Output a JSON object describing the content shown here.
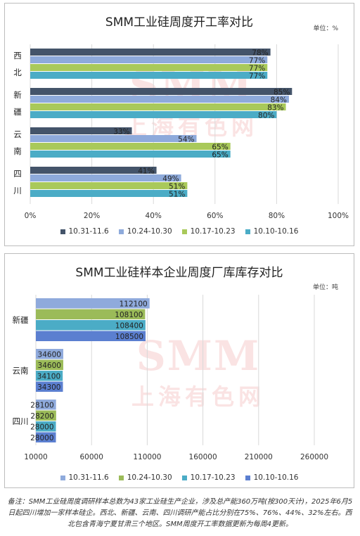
{
  "colors": {
    "s1": "#44546a",
    "s2": "#8eaadb",
    "s3": "#a9c95a",
    "s4": "#4bacc6",
    "s2_inv": "#8faadc",
    "s3_inv": "#9bbb59",
    "s4_inv": "#4bacc6",
    "s5_inv": "#5b7fd0",
    "grid": "#d9d9d9"
  },
  "watermark": {
    "brand": "SMM",
    "cn": "上海有色网"
  },
  "chart1": {
    "title": "SMM工业硅周度开工率对比",
    "unit": "单位：%",
    "chart_data": {
      "type": "bar",
      "orientation": "horizontal",
      "categories": [
        "西北",
        "新疆",
        "云南",
        "四川"
      ],
      "series": [
        {
          "name": "10.31-11.6",
          "values": [
            78,
            85,
            33,
            41
          ]
        },
        {
          "name": "10.24-10.30",
          "values": [
            77,
            84,
            54,
            49
          ]
        },
        {
          "name": "10.17-10.23",
          "values": [
            77,
            83,
            65,
            51
          ]
        },
        {
          "name": "10.10-10.16",
          "values": [
            77,
            80,
            65,
            51
          ]
        }
      ],
      "value_suffix": "%",
      "xlim": [
        0,
        100
      ],
      "xticks": [
        "0%",
        "20%",
        "40%",
        "60%",
        "80%",
        "100%"
      ],
      "grid": "vertical",
      "legend_position": "bottom"
    }
  },
  "chart2": {
    "title": "SMM工业硅样本企业周度厂库库存对比",
    "unit": "单位：吨",
    "chart_data": {
      "type": "bar",
      "orientation": "horizontal",
      "categories": [
        "新疆",
        "云南",
        "四川"
      ],
      "series": [
        {
          "name": "10.31-11.6",
          "values": [
            112100,
            34600,
            28100
          ]
        },
        {
          "name": "10.24-10.30",
          "values": [
            108100,
            34600,
            28200
          ]
        },
        {
          "name": "10.17-10.23",
          "values": [
            108400,
            34100,
            28000
          ]
        },
        {
          "name": "10.10-10.16",
          "values": [
            108500,
            34300,
            28000
          ]
        }
      ],
      "xlim": [
        10000,
        260000
      ],
      "xticks": [
        "10000",
        "60000",
        "110000",
        "160000",
        "210000",
        "260000"
      ],
      "grid": "vertical",
      "legend_position": "bottom"
    }
  },
  "footnote": "备注：SMM工业硅周度调研样本总数为43家工业硅生产企业，涉及总产能360万吨(按300天计)，2025年6月5日起四川增加一家样本硅企。西北、新疆、云南、四川调研产能占比分别在75%、76%、44%、32%左右。西北包含青海宁夏甘肃三个地区。SMM周度开工率数据更新为每周4更新。"
}
